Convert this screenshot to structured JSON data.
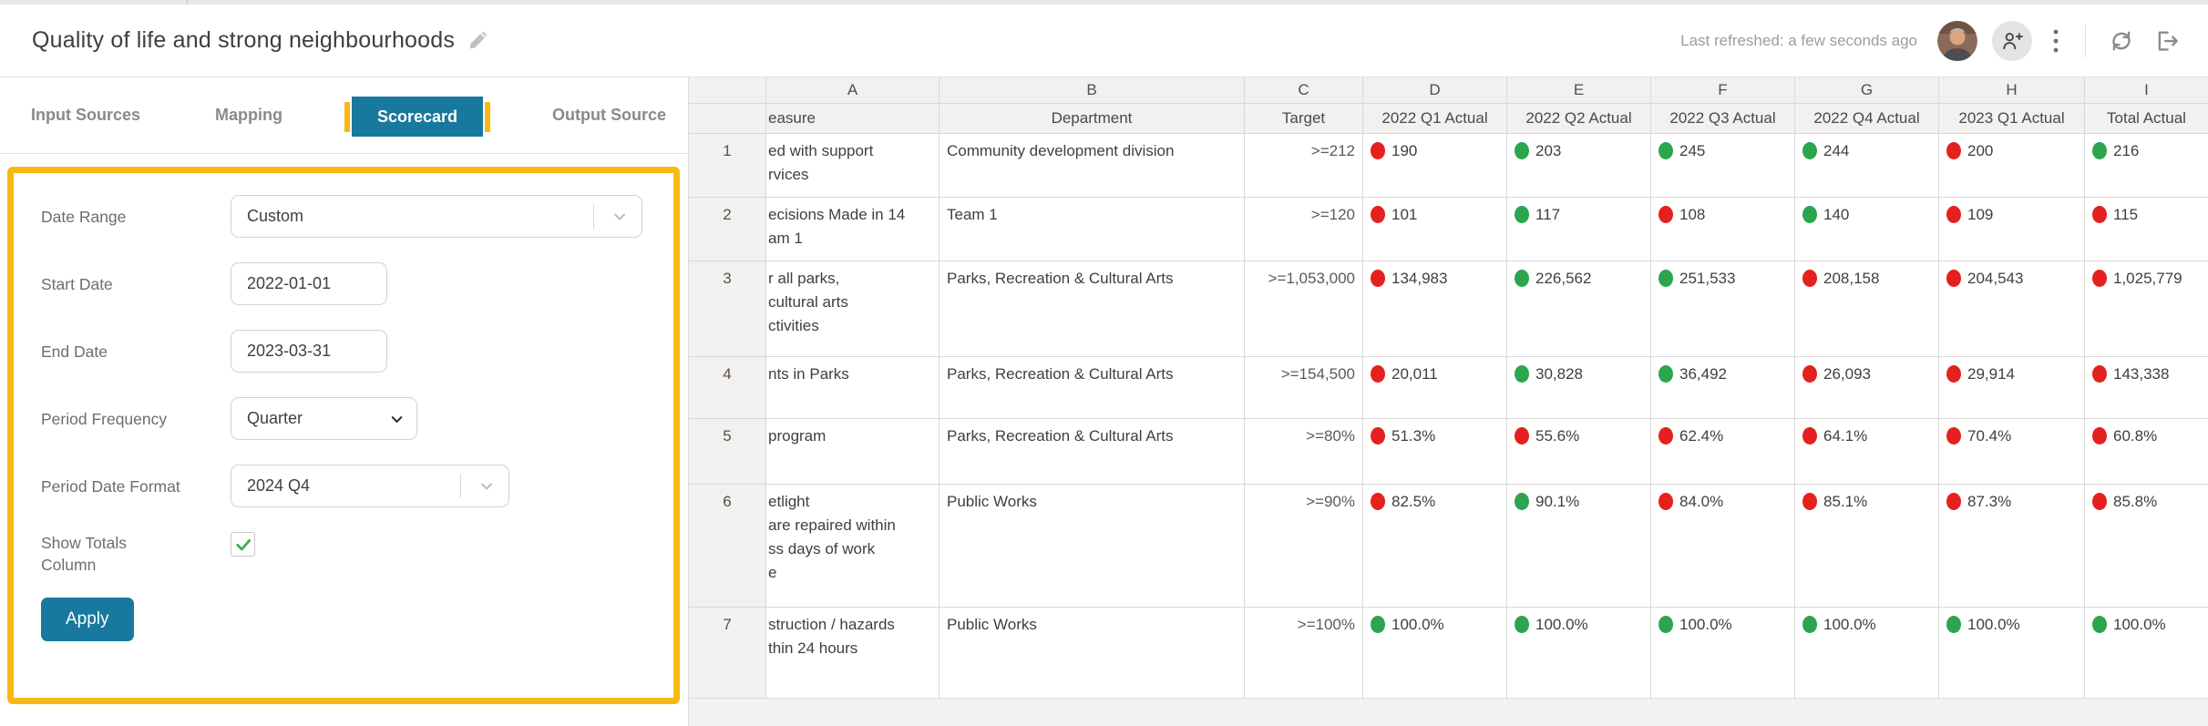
{
  "header": {
    "title": "Quality of life and strong neighbourhoods",
    "last_refreshed": "Last refreshed: a few seconds ago",
    "icons": [
      "edit-pencil-icon",
      "avatar",
      "person-add-icon",
      "kebab-menu-icon",
      "refresh-sync-icon",
      "export-icon"
    ]
  },
  "tabs": [
    {
      "label": "Input Sources",
      "active": false
    },
    {
      "label": "Mapping",
      "active": false
    },
    {
      "label": "Scorecard",
      "active": true
    },
    {
      "label": "Output Source",
      "active": false
    }
  ],
  "form": {
    "fields": [
      {
        "label": "Date Range",
        "value": "Custom",
        "type": "combobox"
      },
      {
        "label": "Start Date",
        "value": "2022-01-01",
        "type": "input"
      },
      {
        "label": "End Date",
        "value": "2023-03-31",
        "type": "input"
      },
      {
        "label": "Period Frequency",
        "value": "Quarter",
        "type": "select"
      },
      {
        "label": "Period Date Format",
        "value": "2024 Q4",
        "type": "combobox"
      },
      {
        "label": "Show Totals Column",
        "checked": true,
        "type": "checkbox"
      }
    ],
    "apply_label": "Apply"
  },
  "sheet": {
    "column_letters": [
      "A",
      "B",
      "C",
      "D",
      "E",
      "F",
      "G",
      "H",
      "I"
    ],
    "headers": [
      "easure",
      "Department",
      "Target",
      "2022 Q1 Actual",
      "2022 Q2 Actual",
      "2022 Q3 Actual",
      "2022 Q4 Actual",
      "2023 Q1 Actual",
      "Total Actual"
    ],
    "rows": [
      {
        "num": "1",
        "measure_lines": [
          "ed with support",
          "rvices"
        ],
        "department": "Community development division",
        "target": ">=212",
        "cells": [
          {
            "status": "red",
            "value": "190"
          },
          {
            "status": "green",
            "value": "203"
          },
          {
            "status": "green",
            "value": "245"
          },
          {
            "status": "green",
            "value": "244"
          },
          {
            "status": "red",
            "value": "200"
          },
          {
            "status": "green",
            "value": "216"
          }
        ]
      },
      {
        "num": "2",
        "measure_lines": [
          "ecisions Made in 14",
          "am 1"
        ],
        "department": "Team 1",
        "target": ">=120",
        "cells": [
          {
            "status": "red",
            "value": "101"
          },
          {
            "status": "green",
            "value": "117"
          },
          {
            "status": "red",
            "value": "108"
          },
          {
            "status": "green",
            "value": "140"
          },
          {
            "status": "red",
            "value": "109"
          },
          {
            "status": "red",
            "value": "115"
          }
        ]
      },
      {
        "num": "3",
        "measure_lines": [
          "r all parks,",
          "cultural arts",
          "ctivities"
        ],
        "department": "Parks, Recreation & Cultural Arts",
        "target": ">=1,053,000",
        "cells": [
          {
            "status": "red",
            "value": "134,983"
          },
          {
            "status": "green",
            "value": "226,562"
          },
          {
            "status": "green",
            "value": "251,533"
          },
          {
            "status": "red",
            "value": "208,158"
          },
          {
            "status": "red",
            "value": "204,543"
          },
          {
            "status": "red",
            "value": "1,025,779"
          }
        ]
      },
      {
        "num": "4",
        "measure_lines": [
          "nts in Parks"
        ],
        "department": "Parks, Recreation & Cultural Arts",
        "target": ">=154,500",
        "cells": [
          {
            "status": "red",
            "value": "20,011"
          },
          {
            "status": "green",
            "value": "30,828"
          },
          {
            "status": "green",
            "value": "36,492"
          },
          {
            "status": "red",
            "value": "26,093"
          },
          {
            "status": "red",
            "value": "29,914"
          },
          {
            "status": "red",
            "value": "143,338"
          }
        ]
      },
      {
        "num": "5",
        "measure_lines": [
          "program"
        ],
        "department": "Parks, Recreation & Cultural Arts",
        "target": ">=80%",
        "cells": [
          {
            "status": "red",
            "value": "51.3%"
          },
          {
            "status": "red",
            "value": "55.6%"
          },
          {
            "status": "red",
            "value": "62.4%"
          },
          {
            "status": "red",
            "value": "64.1%"
          },
          {
            "status": "red",
            "value": "70.4%"
          },
          {
            "status": "red",
            "value": "60.8%"
          }
        ]
      },
      {
        "num": "6",
        "measure_lines": [
          "etlight",
          "are repaired within",
          "ss days of work",
          "e"
        ],
        "department": "Public Works",
        "target": ">=90%",
        "cells": [
          {
            "status": "red",
            "value": "82.5%"
          },
          {
            "status": "green",
            "value": "90.1%"
          },
          {
            "status": "red",
            "value": "84.0%"
          },
          {
            "status": "red",
            "value": "85.1%"
          },
          {
            "status": "red",
            "value": "87.3%"
          },
          {
            "status": "red",
            "value": "85.8%"
          }
        ]
      },
      {
        "num": "7",
        "measure_lines": [
          "struction / hazards",
          "thin 24 hours"
        ],
        "department": "Public Works",
        "target": ">=100%",
        "cells": [
          {
            "status": "green",
            "value": "100.0%"
          },
          {
            "status": "green",
            "value": "100.0%"
          },
          {
            "status": "green",
            "value": "100.0%"
          },
          {
            "status": "green",
            "value": "100.0%"
          },
          {
            "status": "green",
            "value": "100.0%"
          },
          {
            "status": "green",
            "value": "100.0%"
          }
        ]
      }
    ]
  },
  "colors": {
    "accent_teal": "#17799e",
    "annotation_yellow": "#f8ba12",
    "status_red": "#e4211f",
    "status_green": "#2da44e",
    "check_green": "#3db14a"
  }
}
